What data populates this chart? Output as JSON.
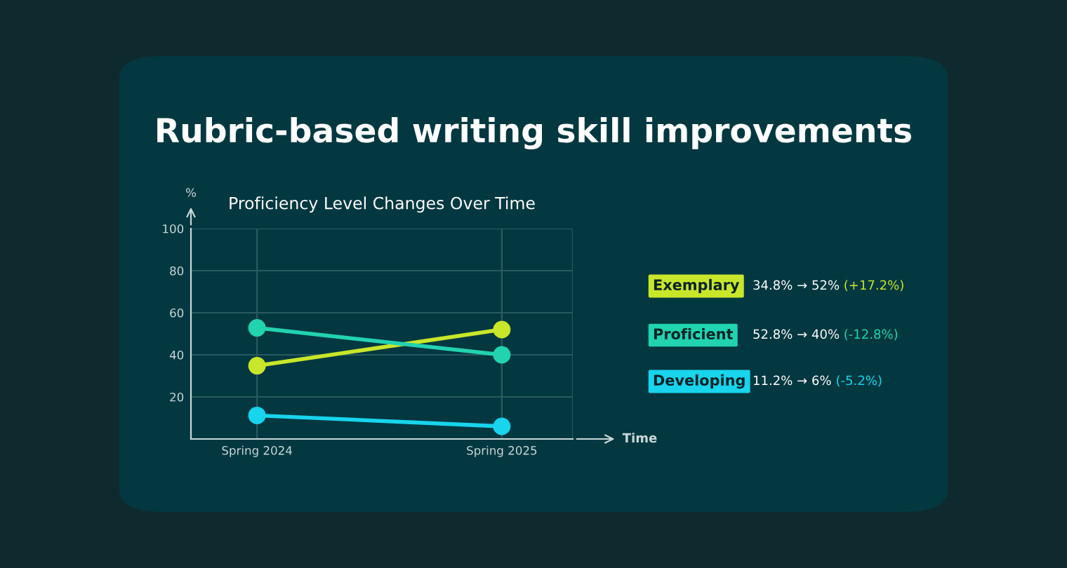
{
  "chart_data": {
    "type": "line",
    "title": "Rubric-based writing skill improvements",
    "subtitle": "Proficiency Level Changes Over Time",
    "xlabel": "Time",
    "ylabel": "%",
    "categories": [
      "Spring 2024",
      "Spring 2025"
    ],
    "series": [
      {
        "name": "Exemplary",
        "color": "#c8e62a",
        "values": [
          34.8,
          52
        ]
      },
      {
        "name": "Proficient",
        "color": "#22d3b0",
        "values": [
          52.8,
          40
        ]
      },
      {
        "name": "Developing",
        "color": "#18d4ec",
        "values": [
          11.2,
          6
        ]
      }
    ],
    "ylim": [
      0,
      100
    ],
    "yticks": [
      20,
      40,
      60,
      80,
      100
    ],
    "grid": true,
    "legend": "right",
    "marker": "circle",
    "line_style": "solid",
    "annotations": [
      "34.8% → 52%",
      "(+17.2%)",
      "52.8% → 40%",
      "(-12.8%)",
      "11.2% → 6%",
      "(-5.2%)"
    ]
  }
}
